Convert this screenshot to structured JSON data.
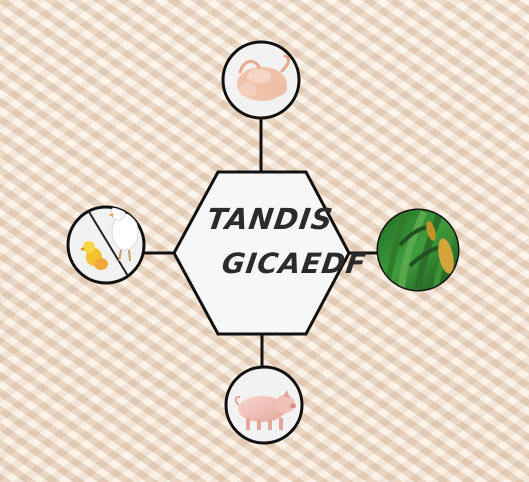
{
  "diagram": {
    "hub": {
      "line1": "TANDIS",
      "line2": "GICAEDF"
    },
    "nodes": [
      {
        "id": "top",
        "icon": "chicken-meat-icon"
      },
      {
        "id": "left",
        "icon": "chicken-and-chick-icon"
      },
      {
        "id": "right",
        "icon": "corn-field-icon"
      },
      {
        "id": "bottom",
        "icon": "pig-icon"
      }
    ]
  },
  "colors": {
    "background": "#f3e6d8",
    "hub_fill": "#f5f5f5",
    "stroke": "#111111",
    "node_fill": "#f2f2f2",
    "text": "#2b2b2b"
  }
}
